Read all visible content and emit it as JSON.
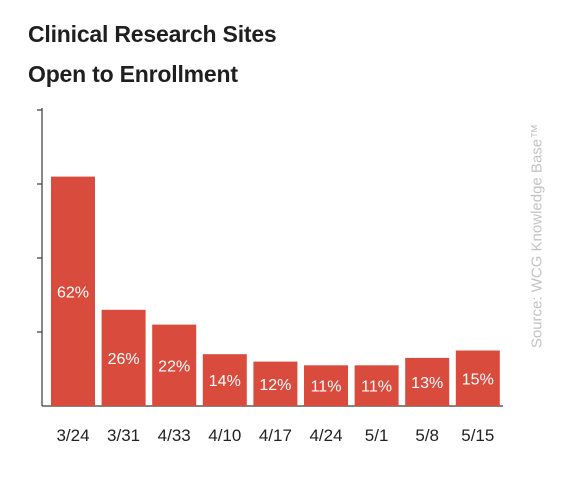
{
  "chart_data": {
    "type": "bar",
    "title": "Clinical Research Sites Open to Enrollment",
    "title_lines": [
      "Clinical Research Sites",
      "Open to Enrollment"
    ],
    "categories": [
      "3/24",
      "3/31",
      "4/33",
      "4/10",
      "4/17",
      "4/24",
      "5/1",
      "5/8",
      "5/15"
    ],
    "values": [
      62,
      26,
      22,
      14,
      12,
      11,
      11,
      13,
      15
    ],
    "value_labels": [
      "62%",
      "26%",
      "22%",
      "14%",
      "12%",
      "11%",
      "11%",
      "13%",
      "15%"
    ],
    "xlabel": "",
    "ylabel": "",
    "ylim": [
      0,
      80
    ],
    "grid": false,
    "bar_color": "#d94b3c",
    "label_color": "#ffffff",
    "source": "Source: WCG Knowledge Base™"
  }
}
